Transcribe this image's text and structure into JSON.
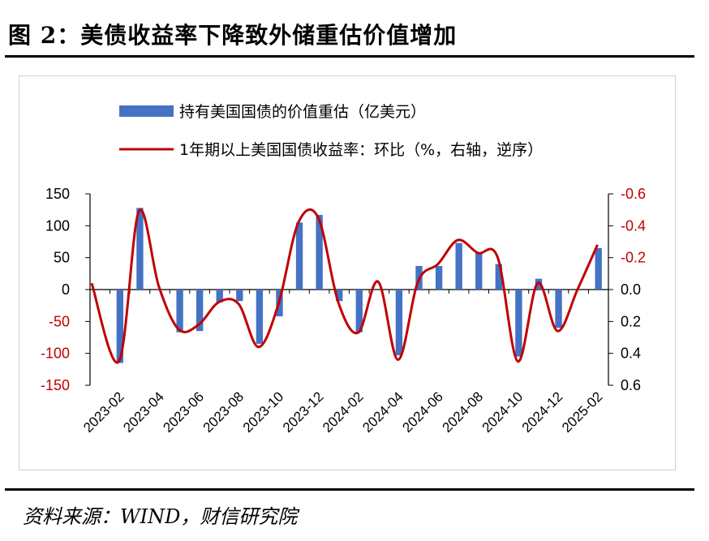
{
  "figure": {
    "title": "图 2：美债收益率下降致外储重估价值增加",
    "source": "资料来源：WIND，财信研究院"
  },
  "chart_data": {
    "type": "bar+line",
    "legend_position": "top",
    "grid": false,
    "x": [
      "2023-01",
      "2023-02",
      "2023-03",
      "2023-04",
      "2023-05",
      "2023-06",
      "2023-07",
      "2023-08",
      "2023-09",
      "2023-10",
      "2023-11",
      "2023-12",
      "2024-01",
      "2024-02",
      "2024-03",
      "2024-04",
      "2024-05",
      "2024-06",
      "2024-07",
      "2024-08",
      "2024-09",
      "2024-10",
      "2024-11",
      "2024-12",
      "2025-01",
      "2025-02"
    ],
    "x_tick_labels": [
      "2023-02",
      "2023-04",
      "2023-06",
      "2023-08",
      "2023-10",
      "2023-12",
      "2024-02",
      "2024-04",
      "2024-06",
      "2024-08",
      "2024-10",
      "2024-12",
      "2025-02"
    ],
    "series": [
      {
        "name": "持有美国国债的价值重估（亿美元）",
        "type": "bar",
        "axis": "left",
        "color": "#4472C4",
        "values": [
          null,
          -115,
          128,
          null,
          -67,
          -65,
          -20,
          -18,
          -85,
          -42,
          105,
          117,
          -18,
          -67,
          null,
          -103,
          37,
          37,
          73,
          58,
          40,
          -105,
          17,
          -60,
          null,
          65
        ]
      },
      {
        "name": "1年期以上美国国债收益率：环比（%，右轴，逆序）",
        "type": "line",
        "axis": "right",
        "inverted": true,
        "color": "#C00000",
        "values": [
          -0.04,
          0.45,
          -0.49,
          -0.02,
          0.25,
          0.22,
          0.08,
          0.09,
          0.36,
          0.09,
          -0.42,
          -0.45,
          0.08,
          0.27,
          -0.05,
          0.44,
          -0.05,
          -0.16,
          -0.31,
          -0.23,
          -0.2,
          0.45,
          -0.04,
          0.26,
          0.0,
          -0.28
        ]
      }
    ],
    "y_left": {
      "ylim": [
        -150,
        150
      ],
      "ticks": [
        150,
        100,
        50,
        0,
        -50,
        -100,
        -150
      ]
    },
    "y_right": {
      "ylim": [
        0.6,
        -0.6
      ],
      "inverted": true,
      "ticks": [
        -0.6,
        -0.4,
        -0.2,
        0.0,
        0.2,
        0.4,
        0.6
      ]
    },
    "right_tick_colors": {
      "negative": "#C00000",
      "non_negative": "#000000"
    },
    "left_tick_colors": {
      "negative": "#C00000",
      "non_negative": "#000000"
    }
  }
}
